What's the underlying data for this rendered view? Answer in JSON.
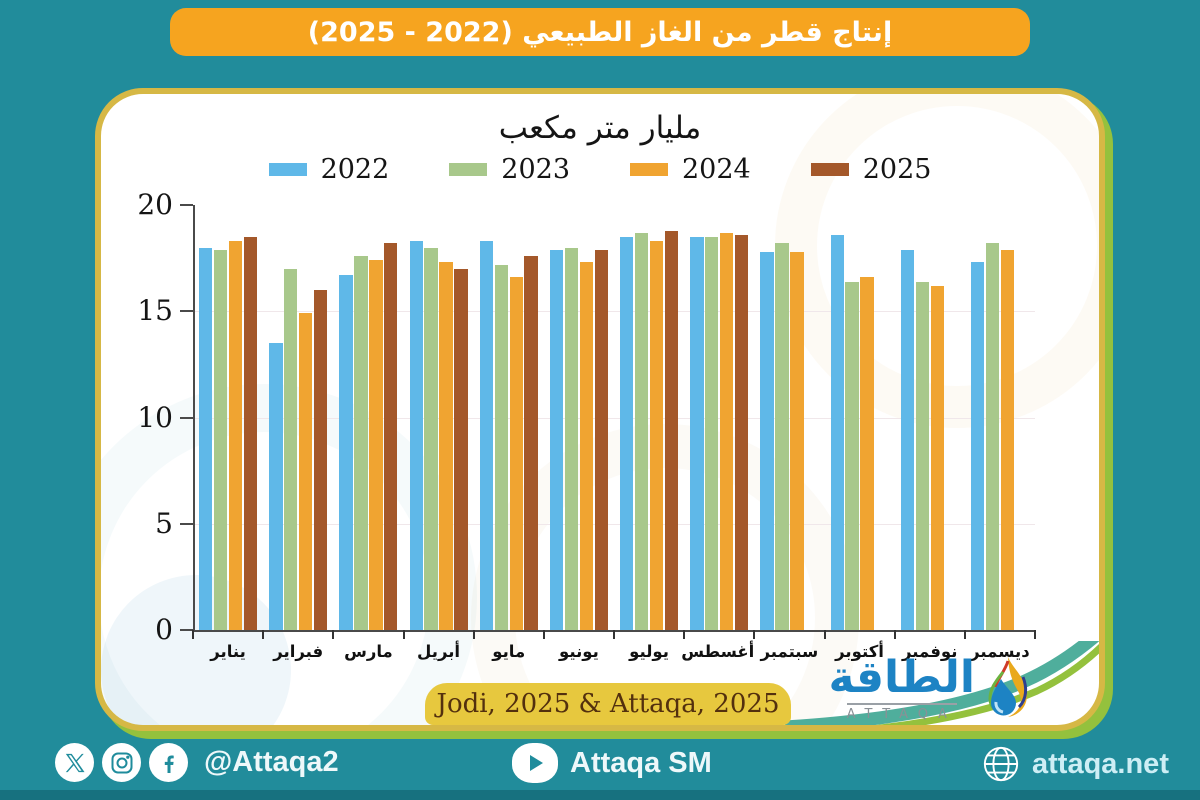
{
  "banner": {
    "title": "إنتاج قطر من الغاز الطبيعي (2022 - 2025)"
  },
  "chart_data": {
    "type": "bar",
    "title": "مليار متر مكعب",
    "categories": [
      "يناير",
      "فبراير",
      "مارس",
      "أبريل",
      "مايو",
      "يونيو",
      "يوليو",
      "أغسطس",
      "سبتمبر",
      "أكتوبر",
      "نوفمبر",
      "ديسمبر"
    ],
    "series": [
      {
        "name": "2022",
        "color": "#5fb8e8",
        "values": [
          18.0,
          13.5,
          16.7,
          18.3,
          18.3,
          17.9,
          18.5,
          18.5,
          17.8,
          18.6,
          17.9,
          17.3
        ]
      },
      {
        "name": "2023",
        "color": "#a8c88b",
        "values": [
          17.9,
          17.0,
          17.6,
          18.0,
          17.2,
          18.0,
          18.7,
          18.5,
          18.2,
          16.4,
          16.4,
          18.2
        ]
      },
      {
        "name": "2024",
        "color": "#f0a431",
        "values": [
          18.3,
          14.9,
          17.4,
          17.3,
          16.6,
          17.3,
          18.3,
          18.7,
          17.8,
          16.6,
          16.2,
          17.9
        ]
      },
      {
        "name": "2025",
        "color": "#a4582a",
        "values": [
          18.5,
          16.0,
          18.2,
          17.0,
          17.6,
          17.9,
          18.8,
          18.6,
          null,
          null,
          null,
          null
        ]
      }
    ],
    "ylim": [
      0,
      20
    ],
    "yticks": [
      0,
      5,
      10,
      15,
      20
    ],
    "grid": true,
    "legend_position": "top"
  },
  "source_box": {
    "label": "Jodi, 2025 & Attaqa, 2025"
  },
  "logo": {
    "arabic": "الطاقة",
    "latin": "ATTAQA"
  },
  "footer": {
    "handle": "@Attaqa2",
    "sm_label": "Attaqa SM",
    "website": "attaqa.net"
  },
  "colors": {
    "background": "#218c9b",
    "banner_orange": "#f6a41f",
    "card_border_gold": "#d6b845",
    "card_accent_green": "#94c13d",
    "source_box_gold": "#e7c83e",
    "footer_strip": "#17717f",
    "logo_blue": "#1d83c4",
    "bar_2022": "#5fb8e8",
    "bar_2023": "#a8c88b",
    "bar_2024": "#f0a431",
    "bar_2025": "#a4582a"
  }
}
